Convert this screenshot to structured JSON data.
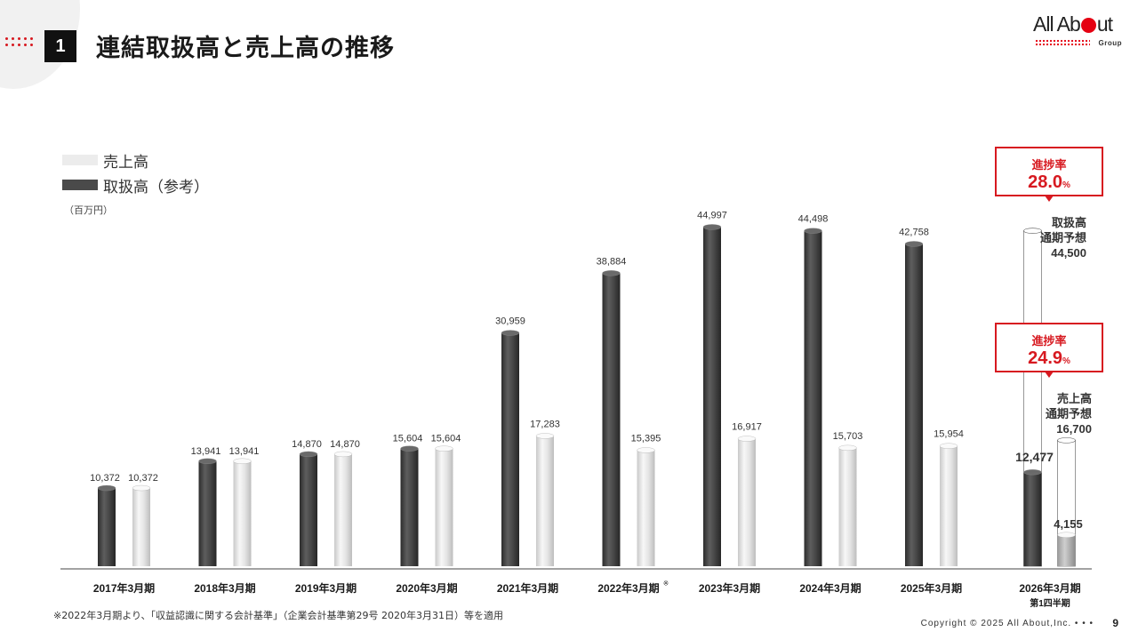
{
  "header": {
    "section_number": "1",
    "title": "連結取扱高と売上高の推移"
  },
  "logo": {
    "text_before": "All Ab",
    "text_after": "ut",
    "sub": "Group"
  },
  "legend": {
    "sales": "売上高",
    "transaction": "取扱高（参考）"
  },
  "unit": "（百万円）",
  "colors": {
    "accent": "#d71920",
    "dark_bar": "#4a4a4a",
    "light_bar": "#e6e6e6"
  },
  "chart_data": {
    "type": "bar",
    "categories": [
      "2017年3月期",
      "2018年3月期",
      "2019年3月期",
      "2020年3月期",
      "2021年3月期",
      "2022年3月期",
      "2023年3月期",
      "2024年3月期",
      "2025年3月期",
      "2026年3月期"
    ],
    "category_sub": [
      "",
      "",
      "",
      "",
      "",
      "",
      "",
      "",
      "",
      "第1四半期"
    ],
    "category_note": [
      "",
      "",
      "",
      "",
      "",
      "※",
      "",
      "",
      "",
      ""
    ],
    "series": [
      {
        "name": "取扱高（参考）",
        "values": [
          10372,
          13941,
          14870,
          15604,
          30959,
          38884,
          44997,
          44498,
          42758,
          12477
        ]
      },
      {
        "name": "売上高",
        "values": [
          10372,
          13941,
          14870,
          15604,
          17283,
          15395,
          16917,
          15703,
          15954,
          4155
        ]
      }
    ],
    "labels": {
      "transaction": [
        "10,372",
        "13,941",
        "14,870",
        "15,604",
        "30,959",
        "38,884",
        "44,997",
        "44,498",
        "42,758",
        "12,477"
      ],
      "sales": [
        "10,372",
        "13,941",
        "14,870",
        "15,604",
        "17,283",
        "15,395",
        "16,917",
        "15,703",
        "15,954",
        "4,155"
      ]
    },
    "forecast": {
      "transaction": 44500,
      "sales": 16700
    },
    "ylim": [
      0,
      46000
    ]
  },
  "callouts": {
    "transaction": {
      "label": "進捗率",
      "value": "28.0",
      "unit": "%"
    },
    "sales": {
      "label": "進捗率",
      "value": "24.9",
      "unit": "%"
    }
  },
  "forecast_text": {
    "transaction": {
      "line1": "取扱高",
      "line2": "通期予想",
      "value": "44,500"
    },
    "sales": {
      "line1": "売上高",
      "line2": "通期予想",
      "value": "16,700"
    }
  },
  "footnote": "※2022年3月期より、「収益認識に関する会計基準」（企業会計基準第29号 2020年3月31日）等を適用",
  "copyright": "Copyright © 2025 All About,Inc.  •  •  •",
  "page_number": "9"
}
